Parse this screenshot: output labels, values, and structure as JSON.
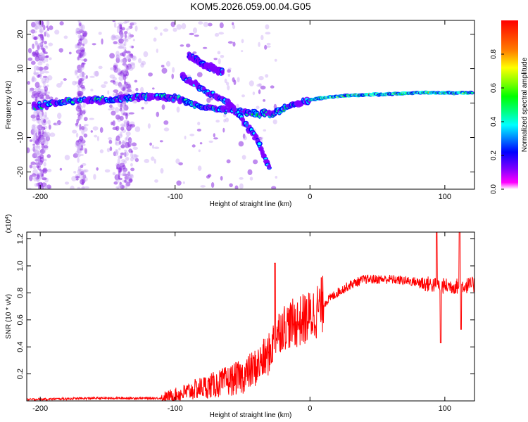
{
  "title": "KOM5.2026.059.00.04.G05",
  "chart_data": [
    {
      "type": "heatmap",
      "name": "spectrogram",
      "xlabel": "Height of straight line (km)",
      "ylabel": "Frequency (Hz)",
      "xlim": [
        -210,
        122
      ],
      "ylim": [
        -25,
        24
      ],
      "xticks": [
        -200,
        -100,
        0,
        100
      ],
      "yticks": [
        -20,
        -10,
        0,
        10,
        20
      ],
      "colorbar": {
        "label": "Normalized spectral amplitude",
        "range": [
          0.0,
          1.0
        ],
        "ticks": [
          "0.0",
          "0.2",
          "0.4",
          "0.6",
          "0.8"
        ],
        "colors": [
          "#ffffff",
          "#ff00ff",
          "#8000ff",
          "#0000ff",
          "#0080ff",
          "#00ffff",
          "#00ff80",
          "#00ff00",
          "#80ff00",
          "#ffff00",
          "#ff8000",
          "#ff0000"
        ]
      },
      "ridges": [
        {
          "name": "main-track",
          "x": [
            -205,
            -180,
            -150,
            -120,
            -100,
            -80,
            -60,
            -40,
            -28,
            -15,
            0,
            20,
            50,
            80,
            120
          ],
          "y": [
            -1,
            0.5,
            1,
            2,
            1.5,
            -1,
            -2,
            -3,
            -3,
            -1,
            1,
            2,
            2.5,
            3,
            3
          ]
        },
        {
          "name": "upper-branch",
          "x": [
            -90,
            -78,
            -65
          ],
          "y": [
            14,
            11,
            9
          ]
        },
        {
          "name": "lower-branch",
          "x": [
            -95,
            -80,
            -60,
            -40,
            -30
          ],
          "y": [
            8,
            4,
            0,
            -10,
            -19
          ]
        }
      ]
    },
    {
      "type": "line",
      "name": "snr",
      "xlabel": "Height of straight line (km)",
      "ylabel": "SNR (10 * v/v)",
      "yscale_label": "(x10",
      "yscale_exp": "4",
      "xlim": [
        -210,
        122
      ],
      "ylim": [
        0,
        1.25
      ],
      "xticks": [
        -200,
        -100,
        0,
        100
      ],
      "yticks": [
        0.2,
        0.4,
        0.6,
        0.8,
        1.0,
        1.2
      ],
      "yticklabels": [
        "0.2",
        "0.4",
        "0.6",
        "0.8",
        "1.0",
        "1.2"
      ],
      "color": "#ff0000",
      "envelope": {
        "x": [
          -210,
          -160,
          -110,
          -100,
          -90,
          -80,
          -70,
          -60,
          -50,
          -40,
          -30,
          -25,
          -20,
          -10,
          0,
          10,
          20,
          30,
          40,
          60,
          80,
          90,
          100,
          110,
          122
        ],
        "y": [
          0.01,
          0.02,
          0.02,
          0.04,
          0.07,
          0.1,
          0.12,
          0.15,
          0.18,
          0.25,
          0.35,
          0.5,
          0.55,
          0.58,
          0.62,
          0.72,
          0.8,
          0.86,
          0.9,
          0.9,
          0.88,
          0.86,
          0.85,
          0.85,
          0.86
        ]
      },
      "spikes": [
        {
          "x": -26,
          "y": 1.02
        },
        {
          "x": 94,
          "y": 1.25
        },
        {
          "x": 97,
          "y": 0.43
        },
        {
          "x": 111,
          "y": 1.25
        },
        {
          "x": 112,
          "y": 0.53
        }
      ]
    }
  ]
}
